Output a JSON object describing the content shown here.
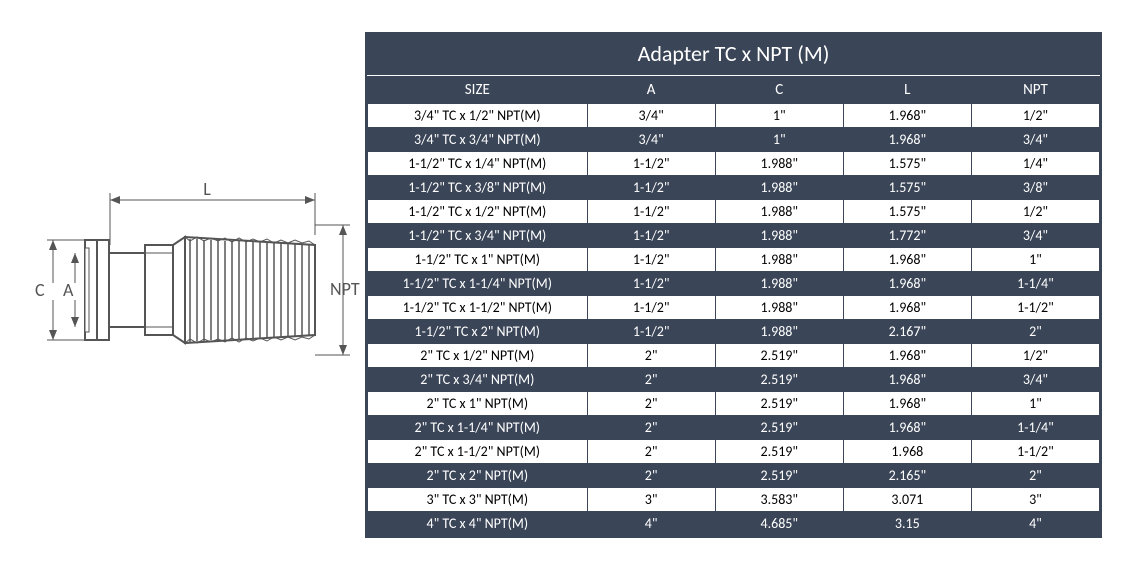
{
  "table": {
    "title": "Adapter TC x NPT (M)",
    "title_fontsize": 22,
    "header_bg": "#3a4557",
    "header_fg": "#ffffff",
    "row_dark_bg": "#3a4557",
    "row_dark_fg": "#ffffff",
    "row_light_bg": "#ffffff",
    "row_light_fg": "#000000",
    "border_color": "#3a4557",
    "columns": [
      "SIZE",
      "A",
      "C",
      "L",
      "NPT"
    ],
    "col_widths_pct": [
      30,
      17.5,
      17.5,
      17.5,
      17.5
    ],
    "rows": [
      [
        "3/4\" TC x 1/2\" NPT(M)",
        "3/4\"",
        "1\"",
        "1.968\"",
        "1/2\""
      ],
      [
        "3/4\" TC x 3/4\" NPT(M)",
        "3/4\"",
        "1\"",
        "1.968\"",
        "3/4\""
      ],
      [
        "1-1/2\" TC x 1/4\" NPT(M)",
        "1-1/2\"",
        "1.988\"",
        "1.575\"",
        "1/4\""
      ],
      [
        "1-1/2\" TC x 3/8\" NPT(M)",
        "1-1/2\"",
        "1.988\"",
        "1.575\"",
        "3/8\""
      ],
      [
        "1-1/2\" TC x 1/2\" NPT(M)",
        "1-1/2\"",
        "1.988\"",
        "1.575\"",
        "1/2\""
      ],
      [
        "1-1/2\" TC x 3/4\" NPT(M)",
        "1-1/2\"",
        "1.988\"",
        "1.772\"",
        "3/4\""
      ],
      [
        "1-1/2\" TC x 1\" NPT(M)",
        "1-1/2\"",
        "1.988\"",
        "1.968\"",
        "1\""
      ],
      [
        "1-1/2\" TC x 1-1/4\" NPT(M)",
        "1-1/2\"",
        "1.988\"",
        "1.968\"",
        "1-1/4\""
      ],
      [
        "1-1/2\" TC x 1-1/2\" NPT(M)",
        "1-1/2\"",
        "1.988\"",
        "1.968\"",
        "1-1/2\""
      ],
      [
        "1-1/2\" TC x 2\" NPT(M)",
        "1-1/2\"",
        "1.988\"",
        "2.167\"",
        "2\""
      ],
      [
        "2\" TC x 1/2\" NPT(M)",
        "2\"",
        "2.519\"",
        "1.968\"",
        "1/2\""
      ],
      [
        "2\" TC x 3/4\" NPT(M)",
        "2\"",
        "2.519\"",
        "1.968\"",
        "3/4\""
      ],
      [
        "2\" TC x 1\" NPT(M)",
        "2\"",
        "2.519\"",
        "1.968\"",
        "1\""
      ],
      [
        "2\" TC x 1-1/4\" NPT(M)",
        "2\"",
        "2.519\"",
        "1.968\"",
        "1-1/4\""
      ],
      [
        "2\" TC x 1-1/2\" NPT(M)",
        "2\"",
        "2.519\"",
        "1.968",
        "1-1/2\""
      ],
      [
        "2\" TC x 2\" NPT(M)",
        "2\"",
        "2.519\"",
        "2.165\"",
        "2\""
      ],
      [
        "3\" TC x 3\" NPT(M)",
        "3\"",
        "3.583\"",
        "3.071",
        "3\""
      ],
      [
        "4\" TC x 4\" NPT(M)",
        "4\"",
        "4.685\"",
        "3.15",
        "4\""
      ]
    ],
    "row_alternation_start": "light"
  },
  "diagram": {
    "labels": {
      "C": "C",
      "A": "A",
      "L": "L",
      "NPT": "NPT"
    },
    "stroke": "#555555",
    "fill": "#ffffff",
    "thread_stroke": "#555555",
    "dim_stroke": "#555555",
    "text_color": "#555555",
    "font_size": 18
  }
}
